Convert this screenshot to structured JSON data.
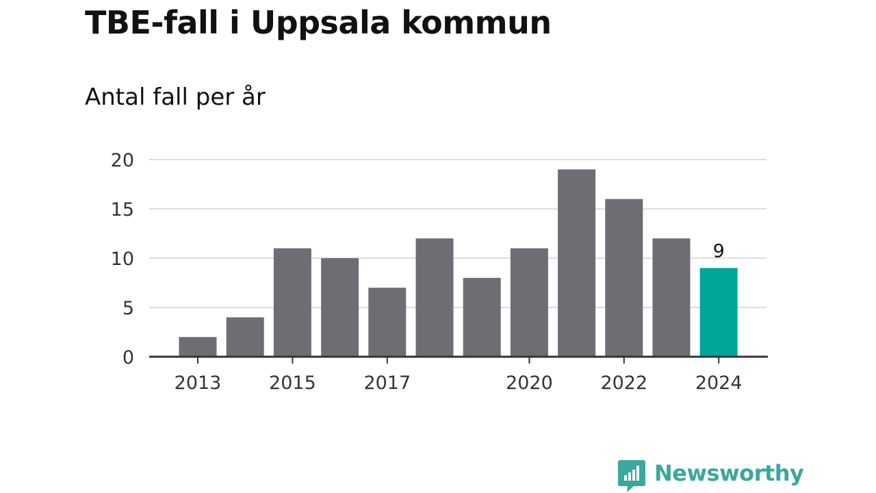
{
  "title": "TBE-fall i Uppsala kommun",
  "subtitle": "Antal fall per år",
  "brand": {
    "name": "Newsworthy",
    "color": "#3aa89c"
  },
  "colors": {
    "bar": "#6e6d74",
    "highlight": "#00a59a",
    "grid": "#dddddd",
    "axis": "#333333"
  },
  "chart_data": {
    "type": "bar",
    "title": "TBE-fall i Uppsala kommun",
    "subtitle": "Antal fall per år",
    "xlabel": "",
    "ylabel": "",
    "categories": [
      2013,
      2014,
      2015,
      2016,
      2017,
      2018,
      2019,
      2020,
      2021,
      2022,
      2023,
      2024
    ],
    "values": [
      2,
      4,
      11,
      10,
      7,
      12,
      8,
      11,
      19,
      16,
      12,
      9
    ],
    "x_tick_labels": [
      "2013",
      "2015",
      "2017",
      "2020",
      "2022",
      "2024"
    ],
    "y_ticks": [
      0,
      5,
      10,
      15,
      20
    ],
    "ylim": [
      0,
      20
    ],
    "grid": true,
    "highlight": {
      "category": 2024,
      "label": "9"
    }
  }
}
